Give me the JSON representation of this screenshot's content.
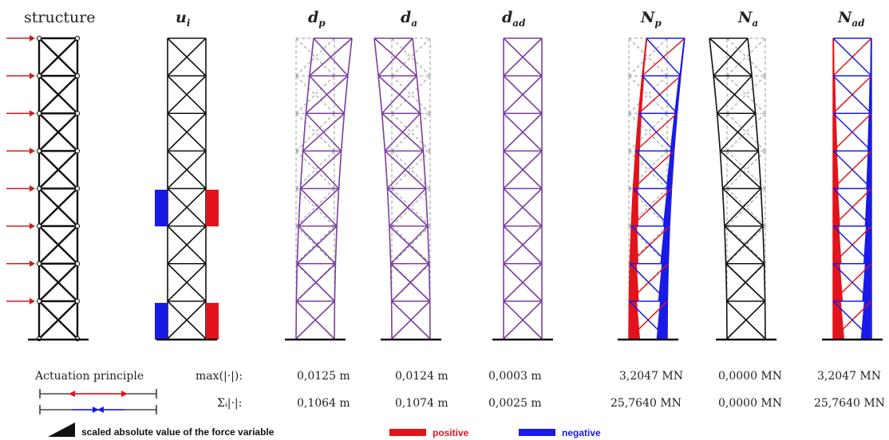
{
  "titles": {
    "structure": "structure",
    "u": {
      "main": "u",
      "sub": "i"
    },
    "dp": {
      "main": "d",
      "sub": "p"
    },
    "da": {
      "main": "d",
      "sub": "a"
    },
    "dad": {
      "main": "d",
      "sub": "ad"
    },
    "Np": {
      "main": "N",
      "sub": "p"
    },
    "Na": {
      "main": "N",
      "sub": "a"
    },
    "Nad": {
      "main": "N",
      "sub": "ad"
    }
  },
  "stats": {
    "max_label": "max(|·|):",
    "sum_label": "Σᵢ|·|:",
    "max": [
      "0,0125 m",
      "0,0124 m",
      "0,0003 m",
      "3,2047 MN",
      "0,0000 MN",
      "3,2047 MN"
    ],
    "sum": [
      "0,1064 m",
      "0,1074 m",
      "0,0025 m",
      "25,7640 MN",
      "0,0000 MN",
      "25,7640 MN"
    ]
  },
  "legend": {
    "actuation": "Actuation principle",
    "scaled": "scaled absolute value of the force variable",
    "positive": "positive",
    "negative": "negative"
  },
  "colors": {
    "structure": "#111111",
    "deformed": "#7b3fa0",
    "undeformed": "#999999",
    "positive": "#e3131b",
    "negative": "#1a1ae6",
    "load_arrow": "#c81e1e"
  }
}
